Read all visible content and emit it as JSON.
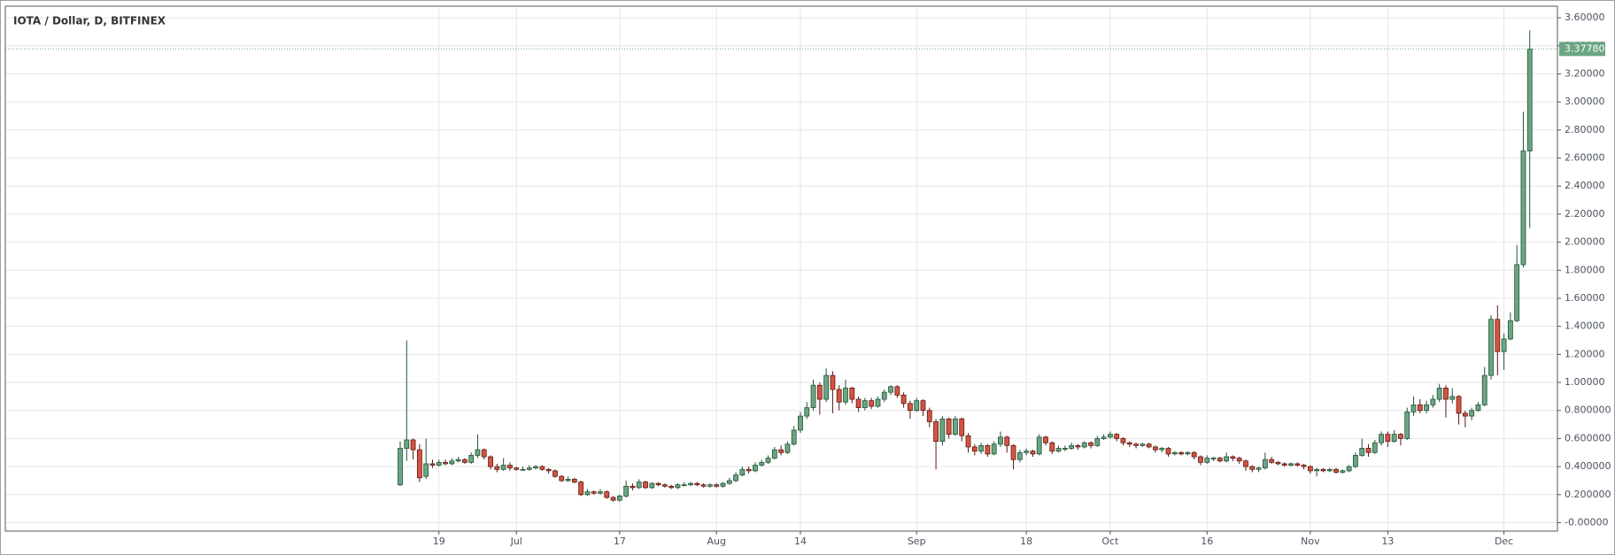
{
  "chart_data": {
    "type": "candlestick",
    "title": "IOTA / Dollar, D, BITFINEX",
    "categories": [
      null,
      null,
      null,
      null,
      null,
      null,
      "19",
      null,
      null,
      null,
      null,
      null,
      null,
      null,
      null,
      null,
      null,
      null,
      "Jul",
      null,
      null,
      null,
      null,
      null,
      null,
      null,
      null,
      null,
      null,
      null,
      null,
      null,
      null,
      null,
      "17",
      null,
      null,
      null,
      null,
      null,
      null,
      null,
      null,
      null,
      null,
      null,
      null,
      null,
      null,
      "Aug",
      null,
      null,
      null,
      null,
      null,
      null,
      null,
      null,
      null,
      null,
      null,
      null,
      "14",
      null,
      null,
      null,
      null,
      null,
      null,
      null,
      null,
      null,
      null,
      null,
      null,
      null,
      null,
      null,
      null,
      null,
      "Sep",
      null,
      null,
      null,
      null,
      null,
      null,
      null,
      null,
      null,
      null,
      null,
      null,
      null,
      null,
      null,
      null,
      "18",
      null,
      null,
      null,
      null,
      null,
      null,
      null,
      null,
      null,
      null,
      null,
      null,
      "Oct",
      null,
      null,
      null,
      null,
      null,
      null,
      null,
      null,
      null,
      null,
      null,
      null,
      null,
      null,
      "16",
      null,
      null,
      null,
      null,
      null,
      null,
      null,
      null,
      null,
      null,
      null,
      null,
      null,
      null,
      null,
      "Nov",
      null,
      null,
      null,
      null,
      null,
      null,
      null,
      null,
      null,
      null,
      null,
      "13",
      null,
      null,
      null,
      null,
      null,
      null,
      null,
      null,
      null,
      null,
      null,
      null,
      null,
      null,
      null,
      null,
      null,
      "Dec",
      null,
      null,
      null,
      null
    ],
    "open": [
      0.27,
      0.53,
      0.59,
      0.52,
      0.33,
      0.42,
      0.41,
      0.43,
      0.42,
      0.44,
      0.45,
      0.43,
      0.48,
      0.52,
      0.47,
      0.4,
      0.38,
      0.41,
      0.39,
      0.38,
      0.38,
      0.39,
      0.4,
      0.38,
      0.37,
      0.33,
      0.3,
      0.31,
      0.29,
      0.2,
      0.22,
      0.21,
      0.22,
      0.18,
      0.16,
      0.19,
      0.26,
      0.25,
      0.29,
      0.25,
      0.28,
      0.27,
      0.26,
      0.25,
      0.27,
      0.27,
      0.28,
      0.27,
      0.26,
      0.27,
      0.26,
      0.28,
      0.3,
      0.34,
      0.38,
      0.37,
      0.41,
      0.43,
      0.46,
      0.52,
      0.5,
      0.56,
      0.66,
      0.76,
      0.82,
      0.98,
      0.88,
      1.05,
      0.95,
      0.86,
      0.96,
      0.88,
      0.82,
      0.87,
      0.83,
      0.88,
      0.93,
      0.97,
      0.91,
      0.85,
      0.8,
      0.87,
      0.8,
      0.72,
      0.58,
      0.74,
      0.63,
      0.74,
      0.62,
      0.54,
      0.51,
      0.55,
      0.49,
      0.56,
      0.61,
      0.55,
      0.45,
      0.5,
      0.51,
      0.49,
      0.61,
      0.57,
      0.51,
      0.53,
      0.53,
      0.55,
      0.54,
      0.57,
      0.55,
      0.6,
      0.61,
      0.63,
      0.6,
      0.57,
      0.56,
      0.55,
      0.56,
      0.54,
      0.52,
      0.53,
      0.49,
      0.5,
      0.49,
      0.5,
      0.47,
      0.43,
      0.46,
      0.46,
      0.44,
      0.47,
      0.46,
      0.44,
      0.4,
      0.38,
      0.39,
      0.45,
      0.43,
      0.42,
      0.41,
      0.42,
      0.41,
      0.4,
      0.37,
      0.38,
      0.37,
      0.38,
      0.36,
      0.37,
      0.4,
      0.48,
      0.53,
      0.5,
      0.57,
      0.63,
      0.58,
      0.63,
      0.6,
      0.79,
      0.84,
      0.8,
      0.84,
      0.88,
      0.96,
      0.88,
      0.9,
      0.78,
      0.76,
      0.8,
      0.84,
      1.05,
      1.45,
      1.22,
      1.31,
      1.44,
      1.84,
      2.65
    ],
    "high": [
      0.58,
      1.3,
      0.6,
      0.56,
      0.6,
      0.45,
      0.45,
      0.45,
      0.46,
      0.47,
      0.46,
      0.5,
      0.63,
      0.53,
      0.48,
      0.42,
      0.46,
      0.43,
      0.4,
      0.4,
      0.41,
      0.41,
      0.41,
      0.39,
      0.38,
      0.34,
      0.33,
      0.32,
      0.3,
      0.24,
      0.23,
      0.24,
      0.23,
      0.19,
      0.2,
      0.3,
      0.28,
      0.31,
      0.3,
      0.29,
      0.29,
      0.28,
      0.27,
      0.28,
      0.29,
      0.29,
      0.29,
      0.28,
      0.28,
      0.28,
      0.29,
      0.32,
      0.36,
      0.4,
      0.4,
      0.43,
      0.45,
      0.48,
      0.54,
      0.55,
      0.58,
      0.69,
      0.79,
      0.86,
      1.02,
      1.0,
      1.1,
      1.08,
      0.98,
      1.02,
      0.97,
      0.9,
      0.89,
      0.89,
      0.9,
      0.95,
      0.98,
      0.98,
      0.93,
      0.87,
      0.89,
      0.88,
      0.82,
      0.74,
      0.76,
      0.75,
      0.76,
      0.75,
      0.64,
      0.56,
      0.57,
      0.56,
      0.58,
      0.65,
      0.62,
      0.56,
      0.52,
      0.53,
      0.52,
      0.63,
      0.62,
      0.58,
      0.55,
      0.55,
      0.57,
      0.56,
      0.58,
      0.58,
      0.62,
      0.63,
      0.65,
      0.64,
      0.61,
      0.58,
      0.57,
      0.57,
      0.57,
      0.55,
      0.54,
      0.54,
      0.51,
      0.51,
      0.51,
      0.51,
      0.48,
      0.48,
      0.47,
      0.47,
      0.5,
      0.48,
      0.47,
      0.45,
      0.41,
      0.4,
      0.5,
      0.47,
      0.44,
      0.43,
      0.43,
      0.43,
      0.42,
      0.41,
      0.39,
      0.39,
      0.39,
      0.39,
      0.38,
      0.41,
      0.5,
      0.6,
      0.56,
      0.59,
      0.65,
      0.65,
      0.66,
      0.64,
      0.82,
      0.9,
      0.88,
      0.87,
      0.91,
      0.99,
      0.98,
      0.96,
      0.91,
      0.8,
      0.82,
      0.86,
      1.11,
      1.48,
      1.55,
      1.35,
      1.5,
      1.98,
      2.93,
      3.51
    ],
    "low": [
      0.26,
      0.44,
      0.45,
      0.29,
      0.31,
      0.39,
      0.4,
      0.41,
      0.41,
      0.43,
      0.42,
      0.42,
      0.46,
      0.45,
      0.38,
      0.36,
      0.37,
      0.37,
      0.37,
      0.37,
      0.37,
      0.38,
      0.37,
      0.35,
      0.32,
      0.29,
      0.29,
      0.28,
      0.19,
      0.19,
      0.2,
      0.2,
      0.17,
      0.15,
      0.15,
      0.18,
      0.23,
      0.24,
      0.24,
      0.24,
      0.26,
      0.25,
      0.24,
      0.24,
      0.26,
      0.26,
      0.26,
      0.25,
      0.25,
      0.25,
      0.25,
      0.27,
      0.29,
      0.33,
      0.35,
      0.36,
      0.4,
      0.42,
      0.45,
      0.48,
      0.49,
      0.55,
      0.64,
      0.74,
      0.8,
      0.77,
      0.86,
      0.78,
      0.8,
      0.84,
      0.85,
      0.79,
      0.8,
      0.81,
      0.82,
      0.86,
      0.91,
      0.89,
      0.82,
      0.74,
      0.79,
      0.76,
      0.68,
      0.38,
      0.55,
      0.6,
      0.62,
      0.58,
      0.5,
      0.48,
      0.49,
      0.47,
      0.48,
      0.54,
      0.5,
      0.38,
      0.43,
      0.48,
      0.47,
      0.48,
      0.55,
      0.49,
      0.5,
      0.51,
      0.52,
      0.52,
      0.53,
      0.53,
      0.54,
      0.59,
      0.6,
      0.58,
      0.55,
      0.54,
      0.53,
      0.54,
      0.53,
      0.5,
      0.5,
      0.47,
      0.48,
      0.48,
      0.48,
      0.45,
      0.41,
      0.42,
      0.44,
      0.43,
      0.43,
      0.44,
      0.42,
      0.37,
      0.36,
      0.36,
      0.38,
      0.42,
      0.41,
      0.4,
      0.4,
      0.4,
      0.38,
      0.35,
      0.33,
      0.36,
      0.36,
      0.35,
      0.35,
      0.36,
      0.39,
      0.47,
      0.47,
      0.49,
      0.55,
      0.54,
      0.57,
      0.55,
      0.59,
      0.76,
      0.78,
      0.78,
      0.82,
      0.86,
      0.75,
      0.85,
      0.7,
      0.68,
      0.73,
      0.79,
      0.83,
      1.02,
      1.05,
      1.09,
      1.3,
      1.43,
      1.82,
      2.1
    ],
    "close": [
      0.53,
      0.59,
      0.52,
      0.32,
      0.42,
      0.41,
      0.43,
      0.42,
      0.44,
      0.45,
      0.43,
      0.48,
      0.52,
      0.47,
      0.4,
      0.38,
      0.41,
      0.39,
      0.38,
      0.38,
      0.39,
      0.4,
      0.38,
      0.37,
      0.33,
      0.3,
      0.31,
      0.29,
      0.2,
      0.22,
      0.21,
      0.22,
      0.18,
      0.16,
      0.19,
      0.26,
      0.25,
      0.29,
      0.25,
      0.28,
      0.27,
      0.26,
      0.25,
      0.27,
      0.27,
      0.28,
      0.27,
      0.26,
      0.27,
      0.26,
      0.28,
      0.3,
      0.34,
      0.38,
      0.37,
      0.41,
      0.43,
      0.46,
      0.52,
      0.5,
      0.56,
      0.66,
      0.76,
      0.82,
      0.98,
      0.88,
      1.05,
      0.95,
      0.86,
      0.96,
      0.88,
      0.82,
      0.87,
      0.83,
      0.88,
      0.93,
      0.97,
      0.91,
      0.85,
      0.8,
      0.87,
      0.8,
      0.72,
      0.58,
      0.74,
      0.63,
      0.74,
      0.62,
      0.54,
      0.51,
      0.55,
      0.49,
      0.56,
      0.61,
      0.55,
      0.45,
      0.5,
      0.51,
      0.49,
      0.61,
      0.57,
      0.51,
      0.53,
      0.53,
      0.55,
      0.54,
      0.57,
      0.55,
      0.6,
      0.61,
      0.63,
      0.6,
      0.57,
      0.56,
      0.55,
      0.56,
      0.54,
      0.52,
      0.53,
      0.49,
      0.5,
      0.49,
      0.5,
      0.47,
      0.43,
      0.46,
      0.46,
      0.44,
      0.47,
      0.46,
      0.44,
      0.4,
      0.38,
      0.39,
      0.45,
      0.43,
      0.42,
      0.41,
      0.42,
      0.41,
      0.4,
      0.37,
      0.38,
      0.37,
      0.38,
      0.36,
      0.37,
      0.4,
      0.48,
      0.53,
      0.5,
      0.57,
      0.63,
      0.58,
      0.63,
      0.6,
      0.79,
      0.84,
      0.8,
      0.84,
      0.88,
      0.96,
      0.88,
      0.9,
      0.78,
      0.76,
      0.8,
      0.84,
      1.05,
      1.45,
      1.22,
      1.31,
      1.44,
      1.84,
      2.65,
      3.3778
    ],
    "last_price_label": "3.37780",
    "up_color": "#6ba583",
    "down_color": "#d75442",
    "up_border": "#225437",
    "down_border": "#5b1a13",
    "ylim": [
      -0.06,
      3.67
    ],
    "yticks": [
      {
        "value": 0,
        "label": "-0.00000"
      },
      {
        "value": 0.2,
        "label": "0.200000"
      },
      {
        "value": 0.4,
        "label": "0.400000"
      },
      {
        "value": 0.6,
        "label": "0.600000"
      },
      {
        "value": 0.8,
        "label": "0.800000"
      },
      {
        "value": 1.0,
        "label": "1.00000"
      },
      {
        "value": 1.2,
        "label": "1.20000"
      },
      {
        "value": 1.4,
        "label": "1.40000"
      },
      {
        "value": 1.6,
        "label": "1.60000"
      },
      {
        "value": 1.8,
        "label": "1.80000"
      },
      {
        "value": 2.0,
        "label": "2.00000"
      },
      {
        "value": 2.2,
        "label": "2.20000"
      },
      {
        "value": 2.4,
        "label": "2.40000"
      },
      {
        "value": 2.6,
        "label": "2.60000"
      },
      {
        "value": 2.8,
        "label": "2.80000"
      },
      {
        "value": 3.0,
        "label": "3.00000"
      },
      {
        "value": 3.2,
        "label": "3.20000"
      },
      {
        "value": 3.4,
        "label": "3.40000"
      },
      {
        "value": 3.6,
        "label": "3.60000"
      }
    ],
    "grid": true
  }
}
